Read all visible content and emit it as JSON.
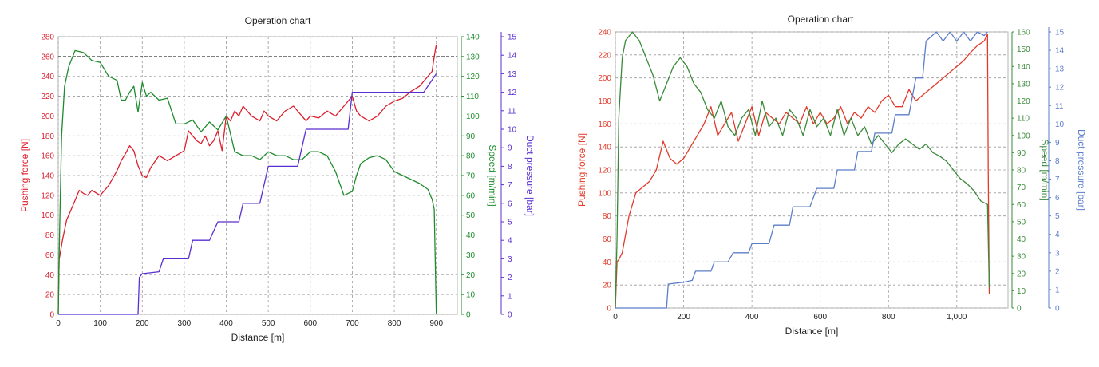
{
  "colors": {
    "force": "#dc1e2d",
    "speed": "#1e8c2d",
    "pressure_left": "#5a2fd0",
    "pressure_right": "#5b7ec9",
    "speed_right": "#3a8a3a",
    "force_right": "#e23a2a"
  },
  "chart_data": [
    {
      "type": "line",
      "title": "Operation chart",
      "xlabel": "Distance [m]",
      "xlim": [
        0,
        950
      ],
      "x_ticks": [
        "0",
        "100",
        "200",
        "300",
        "400",
        "500",
        "600",
        "700",
        "800",
        "900"
      ],
      "x_tick_values": [
        0,
        100,
        200,
        300,
        400,
        500,
        600,
        700,
        800,
        900
      ],
      "axes": [
        {
          "id": "force",
          "label": "Pushing force [N]",
          "side": "left",
          "ylim": [
            0,
            280
          ],
          "ticks": [
            "0",
            "20",
            "40",
            "60",
            "80",
            "100",
            "120",
            "140",
            "160",
            "180",
            "200",
            "220",
            "240",
            "260",
            "280"
          ],
          "tick_values": [
            0,
            20,
            40,
            60,
            80,
            100,
            120,
            140,
            160,
            180,
            200,
            220,
            240,
            260,
            280
          ]
        },
        {
          "id": "speed",
          "label": "Speed [m/min]",
          "side": "right",
          "ylim": [
            0,
            140
          ],
          "ticks": [
            "0",
            "10",
            "20",
            "30",
            "40",
            "50",
            "60",
            "70",
            "80",
            "90",
            "100",
            "110",
            "120",
            "130",
            "140"
          ],
          "tick_values": [
            0,
            10,
            20,
            30,
            40,
            50,
            60,
            70,
            80,
            90,
            100,
            110,
            120,
            130,
            140
          ]
        },
        {
          "id": "pressure",
          "label": "Duct pressure [bar]",
          "side": "right-outer",
          "ylim": [
            0,
            15
          ],
          "ticks": [
            "0",
            "1",
            "2",
            "3",
            "4",
            "5",
            "6",
            "7",
            "8",
            "9",
            "10",
            "11",
            "12",
            "13",
            "14",
            "15"
          ],
          "tick_values": [
            0,
            1,
            2,
            3,
            4,
            5,
            6,
            7,
            8,
            9,
            10,
            11,
            12,
            13,
            14,
            15
          ]
        }
      ],
      "reference_line": {
        "axis": "force",
        "y": 260
      },
      "grid": true,
      "series": [
        {
          "axis": "force",
          "x": [
            0,
            2,
            5,
            10,
            20,
            30,
            40,
            50,
            60,
            70,
            80,
            100,
            120,
            140,
            150,
            160,
            170,
            180,
            190,
            200,
            210,
            220,
            240,
            260,
            280,
            300,
            310,
            320,
            330,
            340,
            350,
            360,
            370,
            380,
            390,
            400,
            410,
            420,
            430,
            440,
            460,
            480,
            490,
            500,
            520,
            540,
            560,
            580,
            590,
            600,
            620,
            640,
            660,
            680,
            700,
            710,
            720,
            740,
            760,
            780,
            800,
            820,
            840,
            860,
            870,
            880,
            890,
            895,
            900
          ],
          "y": [
            0,
            55,
            62,
            75,
            95,
            105,
            115,
            125,
            122,
            120,
            125,
            120,
            130,
            145,
            155,
            162,
            170,
            165,
            150,
            140,
            138,
            148,
            160,
            155,
            160,
            165,
            185,
            180,
            175,
            172,
            180,
            170,
            175,
            185,
            165,
            200,
            195,
            205,
            200,
            210,
            200,
            195,
            205,
            200,
            195,
            205,
            210,
            200,
            195,
            200,
            198,
            205,
            200,
            210,
            220,
            205,
            200,
            195,
            200,
            210,
            215,
            218,
            225,
            230,
            235,
            240,
            245,
            260,
            272
          ]
        },
        {
          "axis": "speed",
          "x": [
            0,
            3,
            8,
            15,
            25,
            40,
            60,
            80,
            100,
            120,
            140,
            150,
            160,
            170,
            180,
            190,
            200,
            210,
            220,
            240,
            260,
            280,
            300,
            320,
            340,
            360,
            380,
            400,
            420,
            440,
            460,
            480,
            500,
            520,
            540,
            560,
            580,
            600,
            620,
            640,
            660,
            680,
            700,
            710,
            720,
            740,
            760,
            780,
            800,
            820,
            840,
            860,
            880,
            890,
            895,
            900
          ],
          "y": [
            0,
            40,
            90,
            115,
            125,
            133,
            132,
            128,
            127,
            120,
            118,
            108,
            108,
            112,
            115,
            102,
            117,
            110,
            112,
            108,
            109,
            96,
            96,
            98,
            92,
            97,
            93,
            100,
            82,
            80,
            80,
            78,
            82,
            80,
            80,
            78,
            78,
            82,
            82,
            80,
            72,
            60,
            62,
            70,
            76,
            79,
            80,
            78,
            72,
            70,
            68,
            66,
            63,
            58,
            53,
            0
          ]
        },
        {
          "axis": "pressure",
          "x": [
            0,
            190,
            193,
            200,
            240,
            250,
            310,
            320,
            360,
            380,
            430,
            440,
            480,
            500,
            570,
            590,
            690,
            700,
            870,
            900
          ],
          "y": [
            0,
            0,
            2,
            2.2,
            2.3,
            3,
            3,
            4,
            4,
            5,
            5,
            6,
            6,
            8,
            8,
            10,
            10,
            12,
            12,
            13
          ]
        }
      ]
    },
    {
      "type": "line",
      "title": "Operation chart",
      "xlabel": "Distance [m]",
      "xlim": [
        0,
        1150
      ],
      "x_ticks": [
        "0",
        "200",
        "400",
        "600",
        "800",
        "1,000"
      ],
      "x_tick_values": [
        0,
        200,
        400,
        600,
        800,
        1000
      ],
      "axes": [
        {
          "id": "force",
          "label": "Pushing force [N]",
          "side": "left",
          "ylim": [
            0,
            240
          ],
          "ticks": [
            "0",
            "20",
            "40",
            "60",
            "80",
            "100",
            "120",
            "140",
            "160",
            "180",
            "200",
            "220",
            "240"
          ],
          "tick_values": [
            0,
            20,
            40,
            60,
            80,
            100,
            120,
            140,
            160,
            180,
            200,
            220,
            240
          ]
        },
        {
          "id": "speed",
          "label": "Speed [m/min]",
          "side": "right",
          "ylim": [
            0,
            160
          ],
          "ticks": [
            "0",
            "10",
            "20",
            "30",
            "40",
            "50",
            "60",
            "70",
            "80",
            "90",
            "100",
            "110",
            "120",
            "130",
            "140",
            "150",
            "160"
          ],
          "tick_values": [
            0,
            10,
            20,
            30,
            40,
            50,
            60,
            70,
            80,
            90,
            100,
            110,
            120,
            130,
            140,
            150,
            160
          ]
        },
        {
          "id": "pressure",
          "label": "Duct pressure [bar]",
          "side": "right-outer",
          "ylim": [
            0,
            15
          ],
          "ticks": [
            "0",
            "1",
            "2",
            "3",
            "4",
            "5",
            "6",
            "7",
            "8",
            "9",
            "10",
            "11",
            "12",
            "13",
            "14",
            "15"
          ],
          "tick_values": [
            0,
            1,
            2,
            3,
            4,
            5,
            6,
            7,
            8,
            9,
            10,
            11,
            12,
            13,
            14,
            15
          ]
        }
      ],
      "grid": true,
      "series": [
        {
          "axis": "force",
          "x": [
            0,
            5,
            10,
            20,
            40,
            60,
            80,
            100,
            120,
            140,
            160,
            180,
            200,
            220,
            240,
            260,
            280,
            300,
            320,
            340,
            360,
            380,
            400,
            420,
            440,
            460,
            480,
            500,
            520,
            540,
            560,
            580,
            600,
            620,
            640,
            660,
            680,
            700,
            720,
            740,
            760,
            780,
            800,
            820,
            840,
            860,
            880,
            900,
            920,
            940,
            960,
            980,
            1000,
            1020,
            1040,
            1060,
            1080,
            1090,
            1092,
            1095
          ],
          "y": [
            0,
            40,
            42,
            48,
            80,
            100,
            105,
            110,
            120,
            145,
            130,
            125,
            130,
            140,
            150,
            160,
            175,
            150,
            160,
            170,
            145,
            160,
            175,
            150,
            170,
            165,
            160,
            170,
            165,
            160,
            175,
            160,
            170,
            160,
            165,
            175,
            160,
            170,
            165,
            175,
            170,
            180,
            185,
            175,
            175,
            190,
            180,
            185,
            190,
            195,
            200,
            205,
            210,
            215,
            222,
            228,
            232,
            238,
            120,
            12
          ]
        },
        {
          "axis": "speed",
          "x": [
            0,
            5,
            10,
            20,
            30,
            50,
            70,
            90,
            110,
            130,
            150,
            170,
            190,
            210,
            230,
            250,
            270,
            290,
            310,
            330,
            350,
            370,
            390,
            410,
            430,
            450,
            470,
            490,
            510,
            530,
            550,
            570,
            590,
            610,
            630,
            650,
            670,
            690,
            710,
            730,
            750,
            770,
            790,
            810,
            830,
            850,
            870,
            890,
            910,
            930,
            950,
            970,
            990,
            1010,
            1030,
            1050,
            1070,
            1090,
            1095
          ],
          "y": [
            0,
            40,
            110,
            145,
            155,
            160,
            155,
            145,
            135,
            120,
            130,
            140,
            145,
            140,
            130,
            125,
            115,
            110,
            120,
            105,
            100,
            110,
            115,
            100,
            120,
            105,
            110,
            100,
            115,
            110,
            100,
            115,
            105,
            110,
            100,
            115,
            100,
            110,
            100,
            105,
            95,
            100,
            95,
            90,
            95,
            98,
            95,
            92,
            95,
            90,
            88,
            85,
            80,
            75,
            72,
            68,
            62,
            60,
            12
          ]
        },
        {
          "axis": "pressure",
          "x": [
            0,
            150,
            155,
            200,
            225,
            235,
            280,
            290,
            330,
            345,
            390,
            400,
            450,
            465,
            510,
            520,
            570,
            590,
            640,
            650,
            700,
            710,
            750,
            760,
            810,
            820,
            860,
            880,
            900,
            910,
            940,
            960,
            980,
            1000,
            1020,
            1040,
            1060,
            1080,
            1090
          ],
          "y": [
            0,
            0,
            1.3,
            1.4,
            1.5,
            2.0,
            2.0,
            2.5,
            2.5,
            3.0,
            3.0,
            3.5,
            3.5,
            4.5,
            4.5,
            5.5,
            5.5,
            6.5,
            6.5,
            7.5,
            7.5,
            8.5,
            8.5,
            9.5,
            9.5,
            10.5,
            10.5,
            12.5,
            12.5,
            14.5,
            15,
            14.5,
            15,
            14.5,
            15,
            14.5,
            15,
            14.8,
            15
          ]
        }
      ]
    }
  ]
}
